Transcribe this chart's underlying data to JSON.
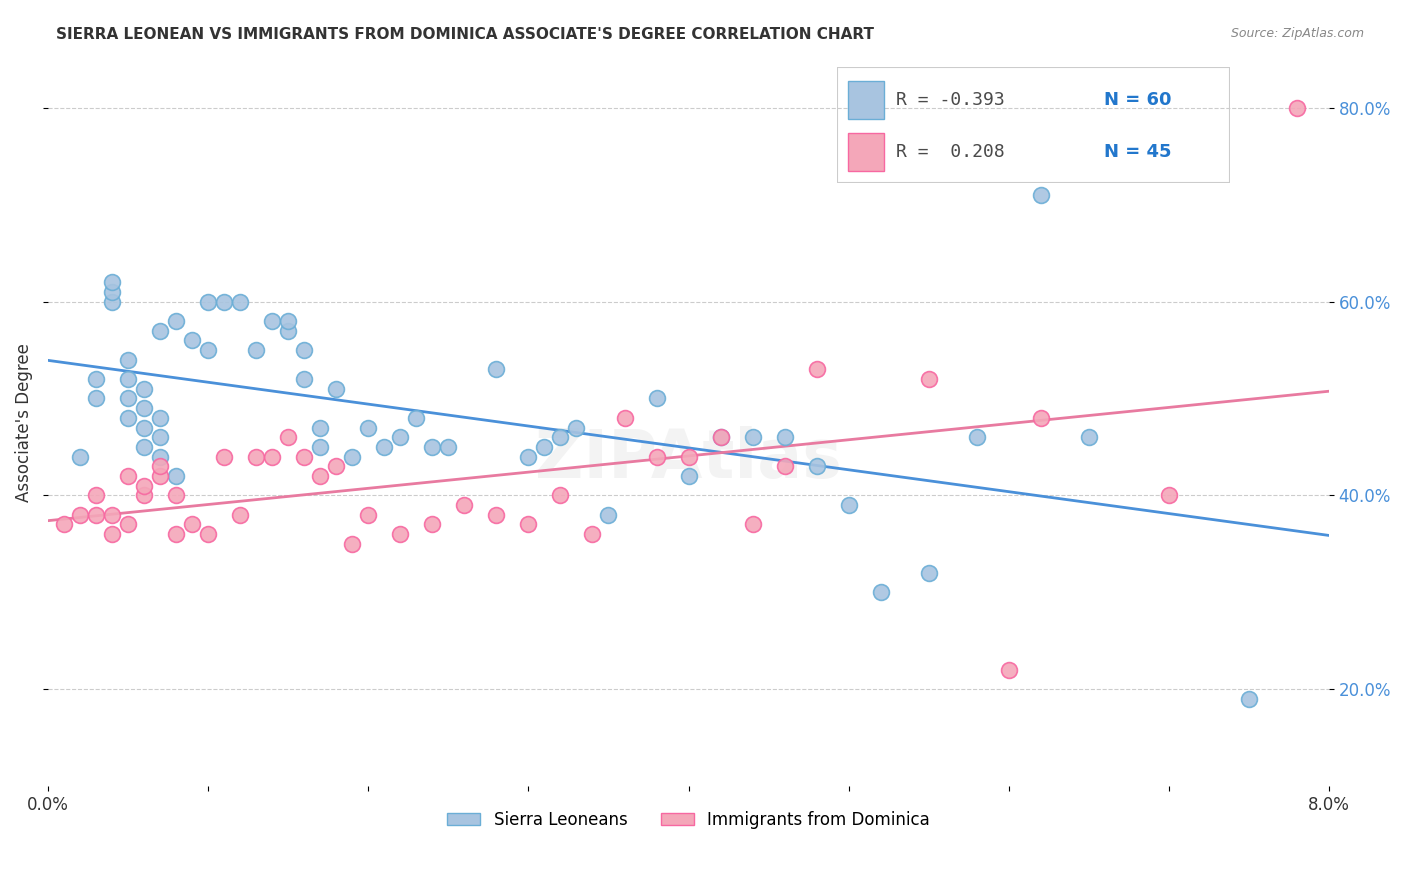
{
  "title": "SIERRA LEONEAN VS IMMIGRANTS FROM DOMINICA ASSOCIATE'S DEGREE CORRELATION CHART",
  "source": "Source: ZipAtlas.com",
  "ylabel": "Associate's Degree",
  "legend_label1": "Sierra Leoneans",
  "legend_label2": "Immigrants from Dominica",
  "legend_r1": "R = -0.393",
  "legend_n1": "N = 60",
  "legend_r2": "R =  0.208",
  "legend_n2": "N = 45",
  "color_blue": "#a8c4e0",
  "color_pink": "#f4a7b9",
  "line_blue": "#6baed6",
  "line_pink": "#f768a1",
  "blue_x": [
    0.002,
    0.003,
    0.003,
    0.004,
    0.004,
    0.004,
    0.005,
    0.005,
    0.005,
    0.005,
    0.006,
    0.006,
    0.006,
    0.006,
    0.007,
    0.007,
    0.007,
    0.007,
    0.008,
    0.008,
    0.009,
    0.01,
    0.01,
    0.011,
    0.012,
    0.013,
    0.014,
    0.015,
    0.015,
    0.016,
    0.016,
    0.017,
    0.017,
    0.018,
    0.019,
    0.02,
    0.021,
    0.022,
    0.023,
    0.024,
    0.025,
    0.028,
    0.03,
    0.031,
    0.032,
    0.033,
    0.035,
    0.038,
    0.04,
    0.042,
    0.044,
    0.046,
    0.048,
    0.05,
    0.052,
    0.055,
    0.058,
    0.062,
    0.065,
    0.075
  ],
  "blue_y": [
    0.44,
    0.5,
    0.52,
    0.6,
    0.61,
    0.62,
    0.48,
    0.5,
    0.52,
    0.54,
    0.45,
    0.47,
    0.49,
    0.51,
    0.44,
    0.46,
    0.48,
    0.57,
    0.42,
    0.58,
    0.56,
    0.55,
    0.6,
    0.6,
    0.6,
    0.55,
    0.58,
    0.57,
    0.58,
    0.52,
    0.55,
    0.45,
    0.47,
    0.51,
    0.44,
    0.47,
    0.45,
    0.46,
    0.48,
    0.45,
    0.45,
    0.53,
    0.44,
    0.45,
    0.46,
    0.47,
    0.38,
    0.5,
    0.42,
    0.46,
    0.46,
    0.46,
    0.43,
    0.39,
    0.3,
    0.32,
    0.46,
    0.71,
    0.46,
    0.19
  ],
  "pink_x": [
    0.001,
    0.002,
    0.003,
    0.003,
    0.004,
    0.004,
    0.005,
    0.005,
    0.006,
    0.006,
    0.007,
    0.007,
    0.008,
    0.008,
    0.009,
    0.01,
    0.011,
    0.012,
    0.013,
    0.014,
    0.015,
    0.016,
    0.017,
    0.018,
    0.019,
    0.02,
    0.022,
    0.024,
    0.026,
    0.028,
    0.03,
    0.032,
    0.034,
    0.036,
    0.038,
    0.04,
    0.042,
    0.044,
    0.046,
    0.048,
    0.055,
    0.06,
    0.062,
    0.07,
    0.078
  ],
  "pink_y": [
    0.37,
    0.38,
    0.38,
    0.4,
    0.36,
    0.38,
    0.37,
    0.42,
    0.4,
    0.41,
    0.42,
    0.43,
    0.36,
    0.4,
    0.37,
    0.36,
    0.44,
    0.38,
    0.44,
    0.44,
    0.46,
    0.44,
    0.42,
    0.43,
    0.35,
    0.38,
    0.36,
    0.37,
    0.39,
    0.38,
    0.37,
    0.4,
    0.36,
    0.48,
    0.44,
    0.44,
    0.46,
    0.37,
    0.43,
    0.53,
    0.52,
    0.22,
    0.48,
    0.4,
    0.8
  ],
  "xmin": 0.0,
  "xmax": 0.08,
  "ymin": 0.1,
  "ymax": 0.85
}
